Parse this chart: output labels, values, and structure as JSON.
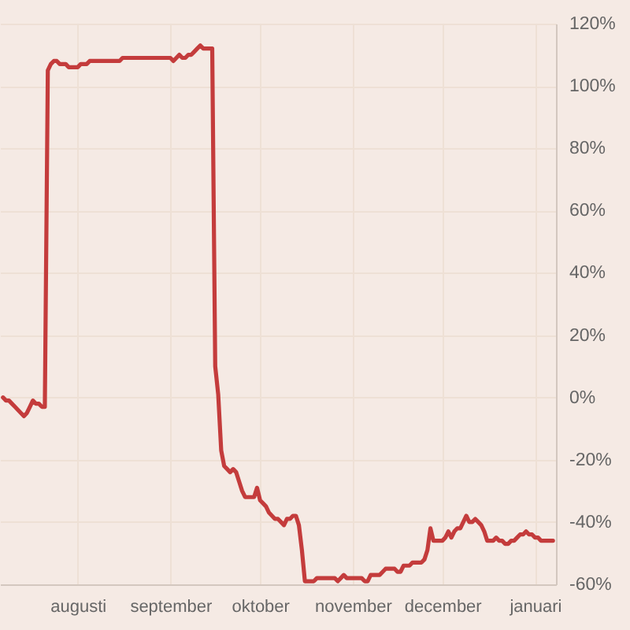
{
  "chart_data": {
    "type": "line",
    "categories": [
      null,
      null,
      null,
      null,
      null,
      null,
      null,
      null,
      null,
      null,
      null,
      null,
      null,
      null,
      null,
      null,
      null,
      null,
      null,
      null,
      null,
      null,
      null,
      null,
      null,
      null,
      "augusti",
      null,
      null,
      null,
      null,
      null,
      null,
      null,
      null,
      null,
      null,
      null,
      null,
      null,
      null,
      null,
      null,
      null,
      null,
      null,
      null,
      null,
      null,
      null,
      null,
      null,
      null,
      null,
      null,
      null,
      null,
      "september",
      null,
      null,
      null,
      null,
      null,
      null,
      null,
      null,
      null,
      null,
      null,
      null,
      null,
      null,
      null,
      null,
      null,
      null,
      null,
      null,
      null,
      null,
      null,
      null,
      null,
      null,
      null,
      null,
      null,
      "oktober",
      null,
      null,
      null,
      null,
      null,
      null,
      null,
      null,
      null,
      null,
      null,
      null,
      null,
      null,
      null,
      null,
      null,
      null,
      null,
      null,
      null,
      null,
      null,
      null,
      null,
      null,
      null,
      null,
      null,
      null,
      "november",
      null,
      null,
      null,
      null,
      null,
      null,
      null,
      null,
      null,
      null,
      null,
      null,
      null,
      null,
      null,
      null,
      null,
      null,
      null,
      null,
      null,
      null,
      null,
      null,
      null,
      null,
      null,
      null,
      null,
      "december",
      null,
      null,
      null,
      null,
      null,
      null,
      null,
      null,
      null,
      null,
      null,
      null,
      null,
      null,
      null,
      null,
      null,
      null,
      null,
      null,
      null,
      null,
      null,
      null,
      null,
      null,
      null,
      null,
      null,
      null,
      "januari",
      null,
      null,
      null,
      null,
      null,
      null,
      null
    ],
    "series": [
      {
        "color": "#c43c3c",
        "values": [
          null,
          0,
          -1,
          -1,
          -2,
          -3,
          -4,
          -5,
          -6,
          -5,
          -3,
          -1,
          -2,
          -2,
          -3,
          -3,
          105,
          107,
          108,
          108,
          107,
          107,
          107,
          106,
          106,
          106,
          106,
          107,
          107,
          107,
          108,
          108,
          108,
          108,
          108,
          108,
          108,
          108,
          108,
          108,
          108,
          109,
          109,
          109,
          109,
          109,
          109,
          109,
          109,
          109,
          109,
          109,
          109,
          109,
          109,
          109,
          109,
          109,
          108,
          109,
          110,
          109,
          109,
          110,
          110,
          111,
          112,
          113,
          112,
          112,
          112,
          112,
          10,
          1,
          -17,
          -22,
          -23,
          -24,
          -23,
          -24,
          -27,
          -30,
          -32,
          -32,
          -32,
          -32,
          -29,
          -33,
          -34,
          -35,
          -37,
          -38,
          -39,
          -39,
          -40,
          -41,
          -39,
          -39,
          -38,
          -38,
          -41,
          -49,
          -59,
          -59,
          -59,
          -59,
          -58,
          -58,
          -58,
          -58,
          -58,
          -58,
          -58,
          -59,
          -58,
          -57,
          -58,
          -58,
          -58,
          -58,
          -58,
          -58,
          -59,
          -59,
          -57,
          -57,
          -57,
          -57,
          -56,
          -55,
          -55,
          -55,
          -55,
          -56,
          -56,
          -54,
          -54,
          -54,
          -53,
          -53,
          -53,
          -53,
          -52,
          -49,
          -42,
          -46,
          -46,
          -46,
          -46,
          -45,
          -43,
          -45,
          -43,
          -42,
          -42,
          -40,
          -38,
          -40,
          -40,
          -39,
          -40,
          -41,
          -43,
          -46,
          -46,
          -46,
          -45,
          -46,
          -46,
          -47,
          -47,
          -46,
          -46,
          -45,
          -44,
          -44,
          -43,
          -44,
          -44,
          -45,
          -45,
          -46,
          -46,
          -46,
          -46,
          -46,
          null
        ]
      }
    ],
    "ylim": [
      -60,
      120
    ],
    "yticks": [
      {
        "value": -60,
        "label": "-60%"
      },
      {
        "value": -40,
        "label": "-40%"
      },
      {
        "value": -20,
        "label": "-20%"
      },
      {
        "value": 0,
        "label": "0%"
      },
      {
        "value": 20,
        "label": "20%"
      },
      {
        "value": 40,
        "label": "40%"
      },
      {
        "value": 60,
        "label": "60%"
      },
      {
        "value": 80,
        "label": "80%"
      },
      {
        "value": 100,
        "label": "100%"
      },
      {
        "value": 120,
        "label": "120%"
      }
    ],
    "grid": true,
    "line_style": "solid"
  }
}
